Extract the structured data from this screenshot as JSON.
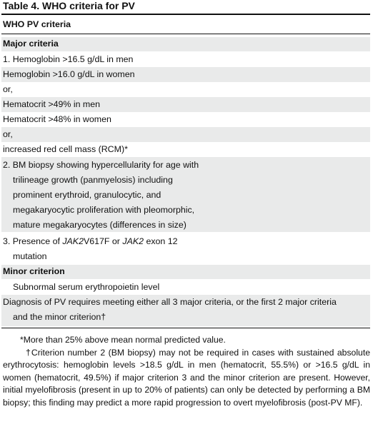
{
  "table": {
    "title": "Table 4. WHO criteria for PV",
    "header": "WHO PV criteria",
    "major_heading": "Major criteria",
    "major_rows": [
      "1. Hemoglobin >16.5 g/dL in men",
      "Hemoglobin >16.0 g/dL in women",
      "or,",
      "Hematocrit >49% in men",
      "Hematocrit >48% in women",
      "or,",
      "increased red cell mass (RCM)*"
    ],
    "criterion2_lines": [
      "2. BM biopsy showing hypercellularity for age with",
      "trilineage growth (panmyelosis) including",
      "prominent erythroid, granulocytic, and",
      "megakaryocytic proliferation with pleomorphic,",
      "mature megakaryocytes (differences in size)"
    ],
    "criterion3": {
      "prefix": "3. Presence of ",
      "gene1": "JAK2",
      "mid": "V617F or ",
      "gene2": "JAK2",
      "suffix": " exon 12",
      "line2": "mutation"
    },
    "minor_heading": "Minor criterion",
    "minor_row": "Subnormal serum erythropoietin level",
    "diagnosis_lines": [
      "Diagnosis of PV requires meeting either all 3 major criteria, or the first 2 major criteria",
      "and the minor criterion†"
    ]
  },
  "footnotes": {
    "note1": "*More than 25% above mean normal predicted value.",
    "note2": "†Criterion number 2 (BM biopsy) may not be required in cases with sustained absolute erythrocytosis: hemoglobin levels >18.5 g/dL in men (hematocrit, 55.5%) or >16.5 g/dL in women (hematocrit, 49.5%) if major criterion 3 and the minor criterion are present. However, initial myelofibrosis (present in up to 20% of patients) can only be detected by performing a BM biopsy; this finding may predict a more rapid progression to overt myelofibrosis (post-PV MF)."
  }
}
